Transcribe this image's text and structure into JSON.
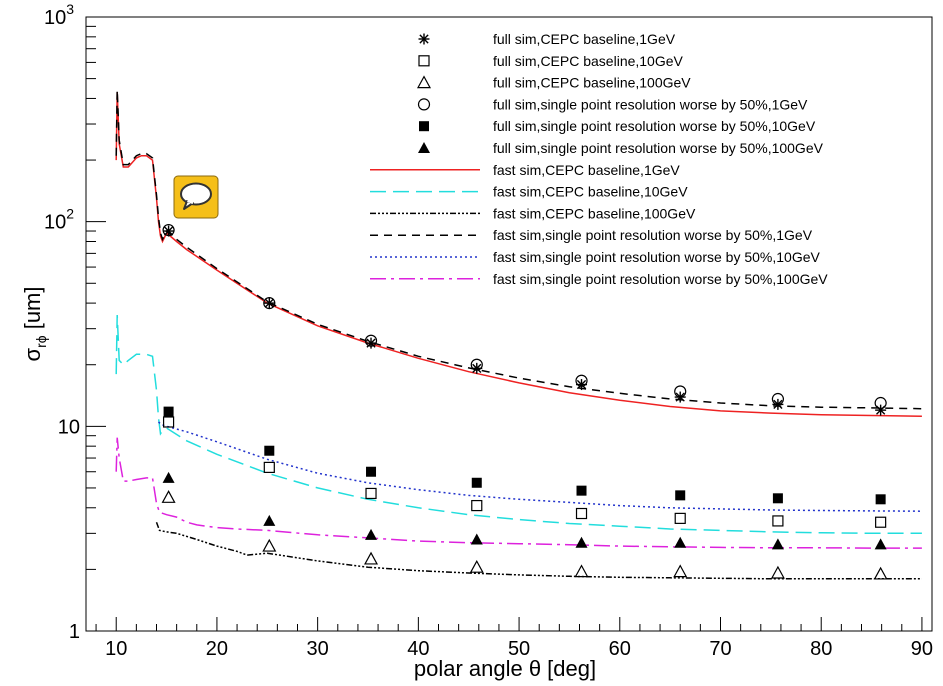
{
  "chart_data": {
    "type": "scatter",
    "title": "",
    "xlabel": "polar angle θ [deg]",
    "ylabel": "σ",
    "ylabel_sub": "rϕ",
    "ylabel_unit": " [um]",
    "xlim": [
      7,
      91
    ],
    "ylim": [
      1,
      1000
    ],
    "yscale": "log",
    "x_ticks": [
      10,
      20,
      30,
      40,
      50,
      60,
      70,
      80,
      90
    ],
    "y_ticks": [
      {
        "value": 1,
        "label": "1",
        "exp": ""
      },
      {
        "value": 10,
        "label": "10",
        "exp": ""
      },
      {
        "value": 100,
        "label": "10",
        "exp": "2"
      },
      {
        "value": 1000,
        "label": "10",
        "exp": "3"
      }
    ],
    "legend_position": "top-right",
    "points_x": [
      15.2,
      25.2,
      35.3,
      45.8,
      56.2,
      66.0,
      75.7,
      85.9
    ],
    "series": [
      {
        "name": "full sim,CEPC baseline,1GeV",
        "kind": "marker",
        "marker": "star",
        "color": "#000000",
        "x": [
          15.2,
          25.2,
          35.3,
          45.8,
          56.2,
          66.0,
          75.7,
          85.9
        ],
        "values": [
          90,
          40,
          25.5,
          19.2,
          16.0,
          13.9,
          12.8,
          12.0
        ]
      },
      {
        "name": "full sim,CEPC baseline,10GeV",
        "kind": "marker",
        "marker": "open-square",
        "color": "#000000",
        "x": [
          15.2,
          25.2,
          35.3,
          45.8,
          56.2,
          66.0,
          75.7,
          85.9
        ],
        "values": [
          10.5,
          6.3,
          4.7,
          4.1,
          3.75,
          3.55,
          3.45,
          3.4
        ]
      },
      {
        "name": "full sim,CEPC baseline,100GeV",
        "kind": "marker",
        "marker": "open-triangle",
        "color": "#000000",
        "x": [
          15.2,
          25.2,
          35.3,
          45.8,
          56.2,
          66.0,
          75.7,
          85.9
        ],
        "values": [
          4.5,
          2.6,
          2.25,
          2.05,
          1.95,
          1.95,
          1.92,
          1.9
        ]
      },
      {
        "name": "full sim,single point resolution worse by 50%,1GeV",
        "kind": "marker",
        "marker": "open-circle",
        "color": "#000000",
        "x": [
          15.2,
          25.2,
          35.3,
          45.8,
          56.2,
          66.0,
          75.7,
          85.9
        ],
        "values": [
          91,
          40,
          26.2,
          20.0,
          16.7,
          14.8,
          13.6,
          13.0
        ]
      },
      {
        "name": "full sim,single point resolution worse by 50%,10GeV",
        "kind": "marker",
        "marker": "filled-square",
        "color": "#000000",
        "x": [
          15.2,
          25.2,
          35.3,
          45.8,
          56.2,
          66.0,
          75.7,
          85.9
        ],
        "values": [
          11.8,
          7.6,
          6.0,
          5.3,
          4.85,
          4.6,
          4.45,
          4.4
        ]
      },
      {
        "name": "full sim,single point resolution worse by 50%,100GeV",
        "kind": "marker",
        "marker": "filled-triangle",
        "color": "#000000",
        "x": [
          15.2,
          25.2,
          35.3,
          45.8,
          56.2,
          66.0,
          75.7,
          85.9
        ],
        "values": [
          5.6,
          3.45,
          2.95,
          2.8,
          2.7,
          2.7,
          2.65,
          2.65
        ]
      },
      {
        "name": "fast sim,CEPC baseline,1GeV",
        "kind": "line",
        "color": "#ee2222",
        "dash": "",
        "x": [
          10,
          10.1,
          10.3,
          10.7,
          11.2,
          12,
          12.5,
          13,
          13.6,
          14,
          14.2,
          14.4,
          14.6,
          15,
          16,
          17,
          20,
          25,
          30,
          35,
          40,
          45,
          50,
          55,
          60,
          65,
          70,
          75,
          80,
          85,
          90
        ],
        "values": [
          200,
          430,
          240,
          185,
          185,
          205,
          210,
          210,
          200,
          130,
          100,
          85,
          80,
          88,
          80,
          73,
          58,
          40,
          31,
          25.5,
          21.5,
          18.5,
          16.3,
          14.6,
          13.4,
          12.5,
          11.9,
          11.6,
          11.4,
          11.3,
          11.2
        ]
      },
      {
        "name": "fast sim,CEPC baseline,10GeV",
        "kind": "line",
        "color": "#22dddd",
        "dash": "16,7",
        "x": [
          10,
          10.1,
          10.3,
          10.7,
          11.2,
          12,
          13,
          13.6,
          14,
          14.2,
          14.4,
          14.6,
          15,
          17,
          20,
          25,
          30,
          35,
          40,
          45,
          50,
          55,
          60,
          65,
          70,
          75,
          80,
          85,
          90
        ],
        "values": [
          18,
          35,
          21,
          20,
          21,
          22.5,
          22.5,
          22,
          15,
          11,
          9.2,
          9.5,
          9.8,
          8.5,
          7.3,
          5.9,
          5.0,
          4.4,
          4.0,
          3.7,
          3.5,
          3.35,
          3.25,
          3.15,
          3.1,
          3.05,
          3.02,
          3.0,
          3.0
        ]
      },
      {
        "name": "fast sim,CEPC baseline,100GeV",
        "kind": "line",
        "color": "#000000",
        "dash": "6,2,2,2,2,2,2,2",
        "x": [
          14,
          14.3,
          15,
          16,
          17,
          18,
          20,
          22,
          23,
          25,
          30,
          35,
          40,
          45,
          50,
          55,
          60,
          65,
          70,
          75,
          80,
          85,
          90
        ],
        "values": [
          3.4,
          3.1,
          3.05,
          3.0,
          2.9,
          2.8,
          2.6,
          2.45,
          2.35,
          2.4,
          2.2,
          2.05,
          1.97,
          1.92,
          1.88,
          1.85,
          1.83,
          1.82,
          1.81,
          1.8,
          1.8,
          1.8,
          1.8
        ]
      },
      {
        "name": "fast sim,single point resolution worse by 50%,1GeV",
        "kind": "line",
        "color": "#000000",
        "dash": "8,6",
        "x": [
          10,
          10.1,
          10.3,
          10.7,
          11.2,
          12,
          12.5,
          13,
          13.6,
          14,
          14.2,
          14.4,
          14.6,
          15,
          16,
          17,
          20,
          25,
          30,
          35,
          40,
          45,
          50,
          55,
          60,
          65,
          70,
          75,
          80,
          85,
          90
        ],
        "values": [
          210,
          440,
          250,
          190,
          190,
          210,
          215,
          215,
          205,
          135,
          105,
          88,
          82,
          90,
          82,
          75,
          59,
          40.5,
          31.5,
          26.0,
          22.0,
          19.3,
          17.2,
          15.6,
          14.5,
          13.6,
          13.0,
          12.6,
          12.4,
          12.3,
          12.2
        ]
      },
      {
        "name": "fast sim,single point resolution worse by 50%,10GeV",
        "kind": "line",
        "color": "#2233cc",
        "dash": "2,3",
        "x": [
          14.2,
          14.5,
          15,
          17,
          20,
          25,
          30,
          35,
          40,
          45,
          50,
          55,
          60,
          65,
          70,
          75,
          80,
          85,
          90
        ],
        "values": [
          10.5,
          10.2,
          10.0,
          9.4,
          8.4,
          6.9,
          5.9,
          5.3,
          4.9,
          4.6,
          4.4,
          4.25,
          4.1,
          4.0,
          3.95,
          3.9,
          3.88,
          3.86,
          3.85
        ]
      },
      {
        "name": "fast sim,single point resolution worse by 50%,100GeV",
        "kind": "line",
        "color": "#dd22dd",
        "dash": "16,5,3,5",
        "x": [
          10,
          10.1,
          10.3,
          10.7,
          11.2,
          12,
          13,
          13.6,
          14,
          14.3,
          15,
          16,
          17,
          18,
          20,
          22,
          25,
          30,
          35,
          40,
          45,
          50,
          55,
          60,
          65,
          70,
          75,
          80,
          85,
          90
        ],
        "values": [
          6,
          8.8,
          7,
          5.4,
          5.4,
          5.5,
          5.6,
          5.6,
          4.2,
          3.8,
          3.7,
          3.6,
          3.4,
          3.3,
          3.2,
          3.15,
          3.1,
          2.95,
          2.85,
          2.75,
          2.7,
          2.67,
          2.64,
          2.6,
          2.58,
          2.56,
          2.55,
          2.55,
          2.54,
          2.54
        ]
      }
    ]
  },
  "overlay": {
    "chat_icon": "speech-bubble-icon",
    "chat_icon_color": "#f5bf19"
  }
}
